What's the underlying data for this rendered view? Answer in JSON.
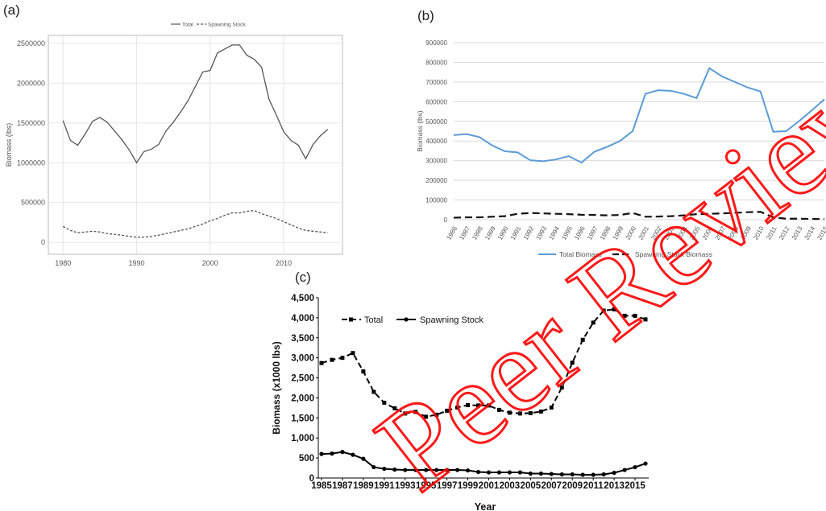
{
  "panels": {
    "a": {
      "letter": "(a)"
    },
    "b": {
      "letter": "(b)"
    },
    "c": {
      "letter": "(c)"
    }
  },
  "watermark": {
    "text": "Peer Review",
    "color": "#ff0000"
  },
  "chart_data": [
    {
      "panel": "(a)",
      "type": "line",
      "ylabel": "Biomass (lbs)",
      "xlabel": "",
      "xlim": [
        1978,
        2018
      ],
      "ylim": [
        -150000,
        2600000
      ],
      "x_ticks": [
        1980,
        1990,
        2000,
        2010
      ],
      "y_ticks": [
        0,
        500000,
        1000000,
        1500000,
        2000000,
        2500000
      ],
      "grid": true,
      "legend": {
        "position": "top",
        "entries": [
          "Total",
          "Spawning Stock"
        ]
      },
      "series": [
        {
          "name": "Total",
          "style": "solid",
          "color": "#555555",
          "x": [
            1980,
            1981,
            1982,
            1983,
            1984,
            1985,
            1986,
            1987,
            1988,
            1989,
            1990,
            1991,
            1992,
            1993,
            1994,
            1995,
            1996,
            1997,
            1998,
            1999,
            2000,
            2001,
            2002,
            2003,
            2004,
            2005,
            2006,
            2007,
            2008,
            2009,
            2010,
            2011,
            2012,
            2013,
            2014,
            2015,
            2016
          ],
          "y": [
            1530000,
            1280000,
            1220000,
            1360000,
            1520000,
            1570000,
            1510000,
            1400000,
            1290000,
            1160000,
            1000000,
            1140000,
            1170000,
            1230000,
            1400000,
            1510000,
            1640000,
            1780000,
            1960000,
            2140000,
            2160000,
            2380000,
            2430000,
            2480000,
            2480000,
            2350000,
            2300000,
            2200000,
            1800000,
            1600000,
            1390000,
            1280000,
            1220000,
            1050000,
            1230000,
            1340000,
            1420000
          ]
        },
        {
          "name": "Spawning Stock",
          "style": "dashed",
          "color": "#555555",
          "x": [
            1980,
            1981,
            1982,
            1983,
            1984,
            1985,
            1986,
            1987,
            1988,
            1989,
            1990,
            1991,
            1992,
            1993,
            1994,
            1995,
            1996,
            1997,
            1998,
            1999,
            2000,
            2001,
            2002,
            2003,
            2004,
            2005,
            2006,
            2007,
            2008,
            2009,
            2010,
            2011,
            2012,
            2013,
            2014,
            2015,
            2016
          ],
          "y": [
            200000,
            150000,
            120000,
            130000,
            140000,
            130000,
            110000,
            100000,
            90000,
            75000,
            65000,
            65000,
            75000,
            90000,
            110000,
            130000,
            150000,
            170000,
            200000,
            230000,
            270000,
            300000,
            340000,
            370000,
            370000,
            390000,
            400000,
            360000,
            330000,
            300000,
            260000,
            220000,
            180000,
            150000,
            140000,
            130000,
            120000
          ]
        }
      ]
    },
    {
      "panel": "(b)",
      "type": "line",
      "ylabel": "Biomass (lbs)",
      "xlabel": "",
      "ylim": [
        0,
        900000
      ],
      "y_ticks": [
        0,
        100000,
        200000,
        300000,
        400000,
        500000,
        600000,
        700000,
        800000,
        900000
      ],
      "categories": [
        "1986",
        "1987",
        "1988",
        "1989",
        "1990",
        "1991",
        "1992",
        "1993",
        "1994",
        "1995",
        "1996",
        "1997",
        "1998",
        "1999",
        "2000",
        "2001",
        "2002",
        "2003",
        "2004",
        "2005",
        "2006",
        "2007",
        "2008",
        "2009",
        "2010",
        "2011",
        "2012",
        "2013",
        "2014",
        "2015"
      ],
      "grid": true,
      "legend": {
        "position": "bottom",
        "entries": [
          "Total Biomass",
          "Spawning Stock Biomass"
        ]
      },
      "series": [
        {
          "name": "Total Biomass",
          "style": "solid",
          "color": "#5b9bd5",
          "values": [
            430000,
            435000,
            420000,
            378000,
            348000,
            342000,
            302000,
            297000,
            306000,
            323000,
            290000,
            345000,
            370000,
            400000,
            450000,
            640000,
            658000,
            655000,
            640000,
            618000,
            770000,
            728000,
            700000,
            672000,
            652000,
            447000,
            450000,
            500000,
            555000,
            612000
          ]
        },
        {
          "name": "Spawning Stock Biomass",
          "style": "dashed",
          "color": "#111111",
          "values": [
            10000,
            12000,
            12000,
            15000,
            18000,
            30000,
            34000,
            32000,
            30000,
            28000,
            25000,
            24000,
            22000,
            24000,
            34000,
            15000,
            16000,
            18000,
            22000,
            28000,
            30000,
            32000,
            35000,
            38000,
            40000,
            12000,
            5000,
            5000,
            4000,
            3000
          ]
        }
      ]
    },
    {
      "panel": "(c)",
      "type": "line",
      "xlabel": "Year",
      "ylabel": "Biomass (x1000 lbs)",
      "ylim": [
        0,
        4500
      ],
      "y_ticks": [
        "0",
        "500",
        "1,000",
        "1,500",
        "2,000",
        "2,500",
        "3,000",
        "3,500",
        "4,000",
        "4,500"
      ],
      "x_ticks": [
        "1985",
        "1987",
        "1989",
        "1991",
        "1993",
        "1995",
        "1997",
        "1999",
        "2001",
        "2003",
        "2005",
        "2007",
        "2009",
        "2011",
        "2013",
        "2015"
      ],
      "xlim": [
        1985,
        2016
      ],
      "grid": false,
      "legend": {
        "position": "top-left",
        "entries": [
          "Total",
          "Spawning Stock"
        ]
      },
      "series": [
        {
          "name": "Total",
          "style": "dashed",
          "marker": "square",
          "color": "#000000",
          "x": [
            1985,
            1986,
            1987,
            1988,
            1989,
            1990,
            1991,
            1992,
            1993,
            1994,
            1995,
            1996,
            1997,
            1998,
            1999,
            2000,
            2001,
            2002,
            2003,
            2004,
            2005,
            2006,
            2007,
            2008,
            2009,
            2010,
            2011,
            2012,
            2013,
            2014,
            2015,
            2016
          ],
          "y": [
            2870,
            2950,
            3000,
            3120,
            2660,
            2150,
            1880,
            1740,
            1610,
            1650,
            1530,
            1580,
            1680,
            1760,
            1820,
            1810,
            1810,
            1700,
            1630,
            1610,
            1620,
            1660,
            1760,
            2260,
            2880,
            3450,
            3880,
            4180,
            4210,
            4050,
            4050,
            3960
          ]
        },
        {
          "name": "Spawning Stock",
          "style": "solid",
          "marker": "circle",
          "color": "#000000",
          "x": [
            1985,
            1986,
            1987,
            1988,
            1989,
            1990,
            1991,
            1992,
            1993,
            1994,
            1995,
            1996,
            1997,
            1998,
            1999,
            2000,
            2001,
            2002,
            2003,
            2004,
            2005,
            2006,
            2007,
            2008,
            2009,
            2010,
            2011,
            2012,
            2013,
            2014,
            2015,
            2016
          ],
          "y": [
            600,
            610,
            650,
            580,
            480,
            270,
            230,
            210,
            200,
            200,
            200,
            200,
            200,
            200,
            190,
            150,
            140,
            140,
            140,
            140,
            110,
            110,
            100,
            90,
            90,
            80,
            80,
            90,
            130,
            200,
            270,
            360
          ]
        }
      ]
    }
  ]
}
